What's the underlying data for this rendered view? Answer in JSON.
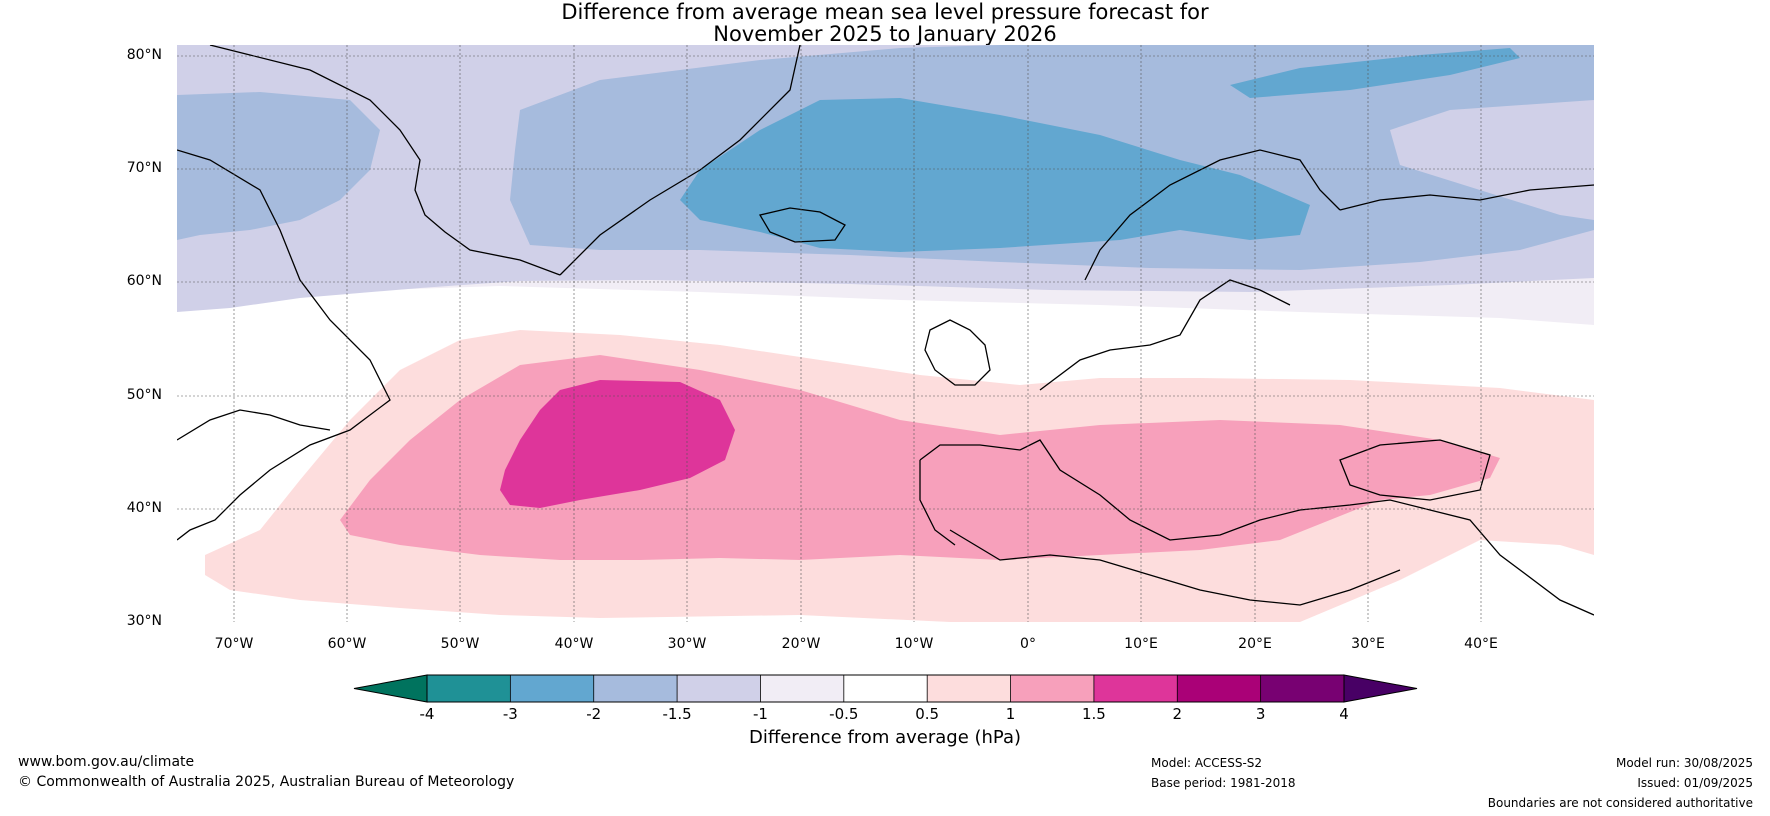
{
  "title": {
    "line1": "Difference from average mean sea level pressure forecast for",
    "line2": "November 2025 to January 2026"
  },
  "map": {
    "lat_labels": [
      "80°N",
      "70°N",
      "60°N",
      "50°N",
      "40°N",
      "30°N"
    ],
    "lon_labels": [
      "70°W",
      "60°W",
      "50°W",
      "40°W",
      "30°W",
      "20°W",
      "10°W",
      "0°",
      "10°E",
      "20°E",
      "30°E",
      "40°E"
    ],
    "lat_range": [
      30,
      80
    ],
    "lon_range": [
      -75,
      50
    ]
  },
  "colorbar": {
    "ticks": [
      "-4",
      "-3",
      "-2",
      "-1.5",
      "-1",
      "-0.5",
      "0.5",
      "1",
      "1.5",
      "2",
      "3",
      "4"
    ],
    "colors": [
      "#00735e",
      "#1f9196",
      "#62a7d0",
      "#a6bbdd",
      "#d0d0e8",
      "#f1edf5",
      "#ffffff",
      "#fddddd",
      "#f7a0bb",
      "#de359a",
      "#aa0177",
      "#780172",
      "#480065"
    ],
    "label": "Difference from average (hPa)"
  },
  "footer": {
    "website": "www.bom.gov.au/climate",
    "copyright": "© Commonwealth of Australia 2025, Australian Bureau of Meteorology",
    "model": "Model: ACCESS-S2",
    "base_period": "Base period: 1981-2018",
    "model_run": "Model run: 30/08/2025",
    "issued": "Issued: 01/09/2025",
    "boundaries": "Boundaries are not considered authoritative"
  }
}
